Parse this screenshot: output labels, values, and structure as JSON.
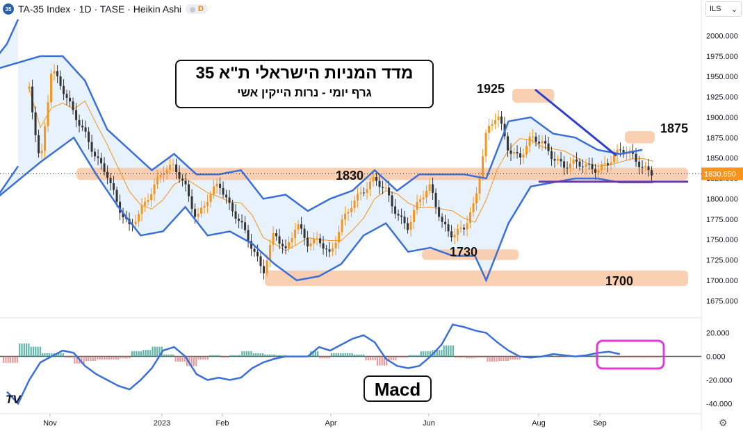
{
  "header": {
    "symbol_badge": "35",
    "title": "TA-35 Index · 1D · TASE · Heikin Ashi",
    "d_badge": "D"
  },
  "currency_select": {
    "value": "ILS",
    "icon": "chevron-down-icon"
  },
  "title_box": {
    "line1": "מדד המניות הישראלי ת\"א 35",
    "line2": "גרף יומי - נרות הייקין אשי"
  },
  "macd_label": "Macd",
  "logo_text": "TV",
  "colors": {
    "up_candle": "#f7941d",
    "down_candle": "#333333",
    "band": "#3a6fd8",
    "band_fill": "#dfeefb",
    "zone": "#f9c8a4",
    "trendline": "#2d3fcf",
    "support_line": "#6a3ca0",
    "macd_circle": "#e23ad4",
    "hist_pos": "#2a9d8f",
    "hist_neg": "#e07a7a"
  },
  "chart_data": [
    {
      "type": "candlestick",
      "title": "TA-35 Index · 1D · TASE · Heikin Ashi",
      "x_ticks": [
        "Nov",
        "2023",
        "Feb",
        "Apr",
        "Jun",
        "Aug",
        "Sep"
      ],
      "y_ticks": [
        "2000.000",
        "1975.000",
        "1950.000",
        "1925.000",
        "1900.000",
        "1875.000",
        "1850.000",
        "1825.000",
        "1800.000",
        "1775.000",
        "1750.000",
        "1725.000",
        "1700.000",
        "1675.000"
      ],
      "ylim": [
        1665,
        2020
      ],
      "last_price": "1830.650",
      "last_price_value": 1830.65,
      "x_range": [
        "2022-10-15",
        "2023-09-30"
      ],
      "closes": [
        {
          "date": "2022-10-15",
          "close": 1935
        },
        {
          "date": "2022-10-25",
          "close": 1840
        },
        {
          "date": "2022-11-01",
          "close": 1960
        },
        {
          "date": "2022-11-08",
          "close": 1935
        },
        {
          "date": "2022-11-15",
          "close": 1905
        },
        {
          "date": "2022-11-22",
          "close": 1880
        },
        {
          "date": "2022-11-29",
          "close": 1850
        },
        {
          "date": "2022-12-06",
          "close": 1830
        },
        {
          "date": "2022-12-13",
          "close": 1790
        },
        {
          "date": "2022-12-20",
          "close": 1765
        },
        {
          "date": "2022-12-28",
          "close": 1785
        },
        {
          "date": "2023-01-04",
          "close": 1810
        },
        {
          "date": "2023-01-11",
          "close": 1835
        },
        {
          "date": "2023-01-18",
          "close": 1840
        },
        {
          "date": "2023-01-25",
          "close": 1815
        },
        {
          "date": "2023-02-01",
          "close": 1775
        },
        {
          "date": "2023-02-08",
          "close": 1800
        },
        {
          "date": "2023-02-15",
          "close": 1820
        },
        {
          "date": "2023-02-22",
          "close": 1790
        },
        {
          "date": "2023-03-01",
          "close": 1770
        },
        {
          "date": "2023-03-08",
          "close": 1740
        },
        {
          "date": "2023-03-15",
          "close": 1710
        },
        {
          "date": "2023-03-22",
          "close": 1760
        },
        {
          "date": "2023-03-29",
          "close": 1735
        },
        {
          "date": "2023-04-05",
          "close": 1770
        },
        {
          "date": "2023-04-12",
          "close": 1745
        },
        {
          "date": "2023-04-19",
          "close": 1750
        },
        {
          "date": "2023-04-26",
          "close": 1730
        },
        {
          "date": "2023-05-03",
          "close": 1770
        },
        {
          "date": "2023-05-10",
          "close": 1795
        },
        {
          "date": "2023-05-17",
          "close": 1810
        },
        {
          "date": "2023-05-24",
          "close": 1825
        },
        {
          "date": "2023-05-31",
          "close": 1810
        },
        {
          "date": "2023-06-07",
          "close": 1780
        },
        {
          "date": "2023-06-14",
          "close": 1765
        },
        {
          "date": "2023-06-21",
          "close": 1800
        },
        {
          "date": "2023-06-28",
          "close": 1815
        },
        {
          "date": "2023-07-05",
          "close": 1770
        },
        {
          "date": "2023-07-12",
          "close": 1755
        },
        {
          "date": "2023-07-19",
          "close": 1765
        },
        {
          "date": "2023-07-26",
          "close": 1795
        },
        {
          "date": "2023-08-02",
          "close": 1880
        },
        {
          "date": "2023-08-07",
          "close": 1905
        },
        {
          "date": "2023-08-10",
          "close": 1860
        },
        {
          "date": "2023-08-14",
          "close": 1850
        },
        {
          "date": "2023-08-17",
          "close": 1875
        },
        {
          "date": "2023-08-21",
          "close": 1870
        },
        {
          "date": "2023-08-24",
          "close": 1850
        },
        {
          "date": "2023-08-29",
          "close": 1840
        },
        {
          "date": "2023-09-04",
          "close": 1845
        },
        {
          "date": "2023-09-08",
          "close": 1840
        },
        {
          "date": "2023-09-12",
          "close": 1835
        },
        {
          "date": "2023-09-15",
          "close": 1845
        },
        {
          "date": "2023-09-19",
          "close": 1860
        },
        {
          "date": "2023-09-22",
          "close": 1855
        },
        {
          "date": "2023-09-26",
          "close": 1838
        },
        {
          "date": "2023-09-30",
          "close": 1831
        }
      ],
      "bollinger_upper": [
        [
          -1,
          2020
        ],
        [
          -2,
          1990
        ],
        [
          -4,
          1955
        ],
        [
          1,
          1975
        ],
        [
          3,
          1975
        ],
        [
          5,
          1945
        ],
        [
          7,
          1885
        ],
        [
          9,
          1860
        ],
        [
          11,
          1835
        ],
        [
          13,
          1855
        ],
        [
          15,
          1830
        ],
        [
          17,
          1830
        ],
        [
          19,
          1835
        ],
        [
          21,
          1800
        ],
        [
          23,
          1805
        ],
        [
          25,
          1785
        ],
        [
          27,
          1800
        ],
        [
          29,
          1810
        ],
        [
          31,
          1835
        ],
        [
          33,
          1810
        ],
        [
          35,
          1830
        ],
        [
          37,
          1830
        ],
        [
          39,
          1830
        ],
        [
          41,
          1825
        ],
        [
          43,
          1895
        ],
        [
          45,
          1900
        ],
        [
          47,
          1880
        ],
        [
          49,
          1875
        ],
        [
          51,
          1860
        ],
        [
          53,
          1855
        ],
        [
          55,
          1860
        ]
      ],
      "bollinger_lower": [
        [
          -1,
          1840
        ],
        [
          -3,
          1800
        ],
        [
          1,
          1845
        ],
        [
          4,
          1875
        ],
        [
          6,
          1830
        ],
        [
          8,
          1790
        ],
        [
          10,
          1755
        ],
        [
          12,
          1760
        ],
        [
          14,
          1790
        ],
        [
          16,
          1755
        ],
        [
          18,
          1760
        ],
        [
          20,
          1745
        ],
        [
          22,
          1720
        ],
        [
          24,
          1700
        ],
        [
          26,
          1705
        ],
        [
          28,
          1720
        ],
        [
          30,
          1755
        ],
        [
          32,
          1770
        ],
        [
          34,
          1735
        ],
        [
          36,
          1740
        ],
        [
          38,
          1730
        ],
        [
          40,
          1730
        ],
        [
          41,
          1700
        ],
        [
          43,
          1770
        ],
        [
          45,
          1815
        ],
        [
          47,
          1820
        ],
        [
          49,
          1825
        ],
        [
          51,
          1825
        ],
        [
          53,
          1820
        ],
        [
          56,
          1820
        ]
      ],
      "zones": [
        {
          "label": "1830",
          "low": 1823,
          "high": 1838
        },
        {
          "label": "1730",
          "low": 1725,
          "high": 1738
        },
        {
          "label": "1700",
          "low": 1693,
          "high": 1712
        },
        {
          "label": "1925",
          "low": 1918,
          "high": 1935
        },
        {
          "label": "1875",
          "low": 1868,
          "high": 1883
        }
      ],
      "annotations": [
        "1830",
        "1730",
        "1700",
        "1925",
        "1875"
      ],
      "trendline": [
        {
          "date": "2023-07-28",
          "value": 1934
        },
        {
          "date": "2023-09-10",
          "value": 1853
        }
      ],
      "support_line": [
        {
          "date": "2023-07-29",
          "value": 1821
        },
        {
          "date": "2023-09-30",
          "value": 1821
        }
      ]
    },
    {
      "type": "macd",
      "y_ticks": [
        "20.000",
        "0.000",
        "-20.000",
        "-40.000"
      ],
      "ylim": [
        -45,
        28
      ],
      "macd_line": [
        [
          -2,
          -30
        ],
        [
          -1,
          -40
        ],
        [
          0,
          -20
        ],
        [
          1,
          -5
        ],
        [
          2,
          0
        ],
        [
          3,
          5
        ],
        [
          4,
          3
        ],
        [
          5,
          -8
        ],
        [
          6,
          -15
        ],
        [
          7,
          -20
        ],
        [
          8,
          -25
        ],
        [
          9,
          -28
        ],
        [
          10,
          -20
        ],
        [
          11,
          -10
        ],
        [
          12,
          5
        ],
        [
          13,
          8
        ],
        [
          14,
          0
        ],
        [
          15,
          -15
        ],
        [
          16,
          -20
        ],
        [
          17,
          -18
        ],
        [
          18,
          -20
        ],
        [
          19,
          -18
        ],
        [
          20,
          -10
        ],
        [
          21,
          -5
        ],
        [
          22,
          -2
        ],
        [
          23,
          0
        ],
        [
          24,
          0
        ],
        [
          25,
          0
        ],
        [
          26,
          8
        ],
        [
          27,
          5
        ],
        [
          28,
          10
        ],
        [
          29,
          15
        ],
        [
          30,
          18
        ],
        [
          31,
          12
        ],
        [
          32,
          -2
        ],
        [
          33,
          -8
        ],
        [
          34,
          -10
        ],
        [
          35,
          -8
        ],
        [
          36,
          0
        ],
        [
          37,
          10
        ],
        [
          38,
          27
        ],
        [
          39,
          25
        ],
        [
          40,
          22
        ],
        [
          41,
          20
        ],
        [
          42,
          12
        ],
        [
          43,
          5
        ],
        [
          44,
          0
        ],
        [
          45,
          -1
        ],
        [
          46,
          0
        ],
        [
          47,
          2
        ],
        [
          48,
          1
        ],
        [
          49,
          0
        ],
        [
          50,
          1
        ],
        [
          51,
          3
        ],
        [
          52,
          4
        ],
        [
          53,
          2
        ]
      ],
      "histogram_note": "positive and negative bars around zero"
    }
  ]
}
